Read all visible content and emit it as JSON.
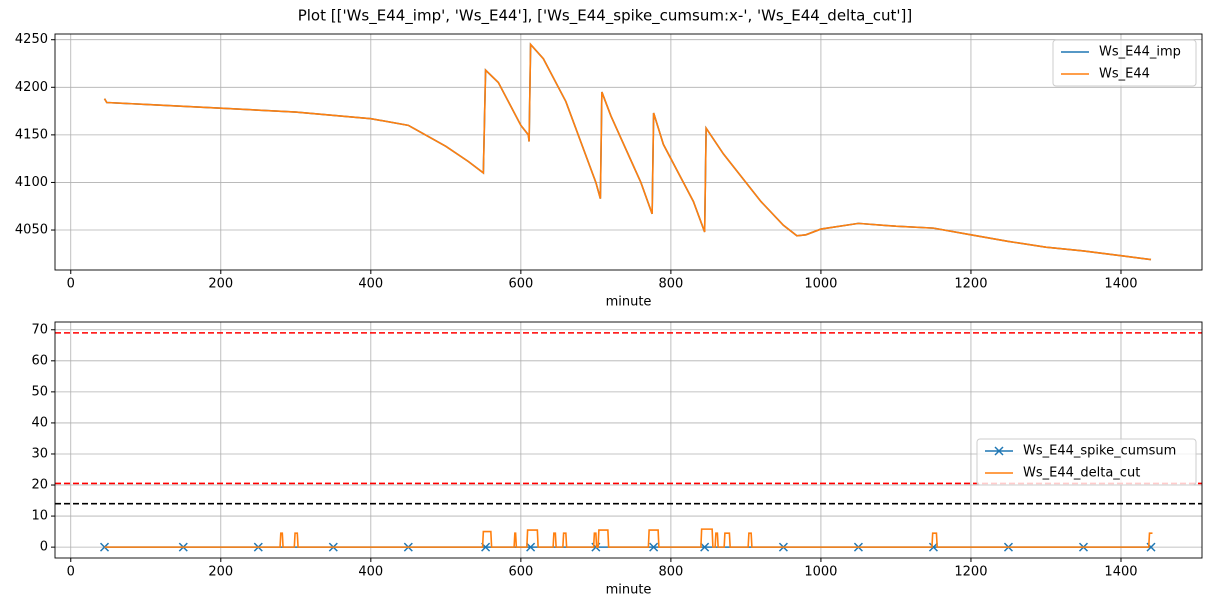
{
  "title": "Plot [['Ws_E44_imp', 'Ws_E44'], ['Ws_E44_spike_cumsum:x-', 'Ws_E44_delta_cut']]",
  "chart_data": [
    {
      "type": "line",
      "xlabel": "minute",
      "xlim": [
        -21,
        1508
      ],
      "xticks": [
        0,
        200,
        400,
        600,
        800,
        1000,
        1200,
        1400
      ],
      "ylim": [
        4008,
        4256
      ],
      "yticks": [
        4050,
        4100,
        4150,
        4200,
        4250
      ],
      "grid": true,
      "legend": "upper right",
      "series": [
        {
          "name": "Ws_E44_imp",
          "color": "#1f77b4",
          "x": [
            45,
            48,
            100,
            200,
            300,
            400,
            450,
            500,
            530,
            550,
            553,
            570,
            600,
            610,
            611,
            613,
            630,
            660,
            700,
            706,
            708,
            720,
            760,
            775,
            777,
            790,
            830,
            845,
            847,
            870,
            920,
            950,
            968,
            980,
            1000,
            1050,
            1100,
            1150,
            1200,
            1250,
            1300,
            1350,
            1400,
            1440
          ],
          "values": [
            4188,
            4184,
            4182,
            4178,
            4174,
            4167,
            4160,
            4138,
            4122,
            4110,
            4218,
            4205,
            4160,
            4150,
            4143,
            4245,
            4230,
            4185,
            4100,
            4083,
            4195,
            4170,
            4100,
            4067,
            4173,
            4140,
            4080,
            4048,
            4157,
            4130,
            4080,
            4055,
            4044,
            4045,
            4051,
            4057,
            4054,
            4052,
            4045,
            4038,
            4032,
            4028,
            4023,
            4019
          ]
        },
        {
          "name": "Ws_E44",
          "color": "#ff7f0e",
          "x": [
            45,
            48,
            100,
            200,
            300,
            400,
            450,
            500,
            530,
            550,
            553,
            570,
            600,
            610,
            611,
            613,
            630,
            660,
            700,
            706,
            708,
            720,
            760,
            775,
            777,
            790,
            830,
            845,
            847,
            870,
            920,
            950,
            968,
            980,
            1000,
            1050,
            1100,
            1150,
            1200,
            1250,
            1300,
            1350,
            1400,
            1440
          ],
          "values": [
            4188,
            4184,
            4182,
            4178,
            4174,
            4167,
            4160,
            4138,
            4122,
            4110,
            4218,
            4205,
            4160,
            4150,
            4143,
            4245,
            4230,
            4185,
            4100,
            4083,
            4195,
            4170,
            4100,
            4067,
            4173,
            4140,
            4080,
            4048,
            4157,
            4130,
            4080,
            4055,
            4044,
            4045,
            4051,
            4057,
            4054,
            4052,
            4045,
            4038,
            4032,
            4028,
            4023,
            4019
          ]
        }
      ]
    },
    {
      "type": "line",
      "xlabel": "minute",
      "xlim": [
        -21,
        1508
      ],
      "xticks": [
        0,
        200,
        400,
        600,
        800,
        1000,
        1200,
        1400
      ],
      "ylim": [
        -3.5,
        72.5
      ],
      "yticks": [
        0,
        10,
        20,
        30,
        40,
        50,
        60,
        70
      ],
      "grid": true,
      "legend": "center right",
      "hlines": [
        {
          "value": 69,
          "color": "#ff0000"
        },
        {
          "value": 20.5,
          "color": "#ff0000"
        },
        {
          "value": 14,
          "color": "#000000"
        }
      ],
      "series": [
        {
          "name": "Ws_E44_spike_cumsum",
          "color": "#1f77b4",
          "marker": "x",
          "x": [
            45,
            150,
            250,
            350,
            450,
            553,
            613,
            700,
            777,
            845,
            950,
            1050,
            1150,
            1250,
            1350,
            1440
          ],
          "values": [
            0,
            0,
            0,
            0,
            0,
            0,
            0,
            0,
            0,
            0,
            0,
            0,
            0,
            0,
            0,
            0
          ]
        },
        {
          "name": "Ws_E44_delta_cut",
          "color": "#ff7f0e",
          "x": [
            45,
            279,
            280,
            282,
            283,
            298,
            299,
            302,
            303,
            549,
            550,
            560,
            561,
            591,
            592,
            593,
            594,
            608,
            609,
            622,
            623,
            643,
            644,
            646,
            647,
            656,
            657,
            660,
            661,
            697,
            698,
            700,
            701,
            703,
            704,
            716,
            717,
            770,
            771,
            783,
            784,
            840,
            841,
            855,
            856,
            859,
            860,
            862,
            863,
            871,
            872,
            878,
            879,
            903,
            904,
            907,
            908,
            1148,
            1149,
            1154,
            1155,
            1437,
            1438,
            1442
          ],
          "values": [
            0,
            0,
            4.5,
            4.5,
            0,
            0,
            4.5,
            4.5,
            0,
            0,
            5,
            5,
            0,
            0,
            4.5,
            4.5,
            0,
            0,
            5.5,
            5.5,
            0,
            0,
            4.5,
            4.5,
            0,
            0,
            4.5,
            4.5,
            0,
            0,
            4.5,
            4.5,
            0,
            0,
            5.5,
            5.5,
            0,
            0,
            5.5,
            5.5,
            0,
            0,
            5.8,
            5.8,
            0,
            0,
            4.5,
            4.5,
            0,
            0,
            4.5,
            4.5,
            0,
            0,
            4.5,
            4.5,
            0,
            0,
            4.5,
            4.5,
            0,
            0,
            4.5,
            4.5
          ]
        }
      ]
    }
  ]
}
